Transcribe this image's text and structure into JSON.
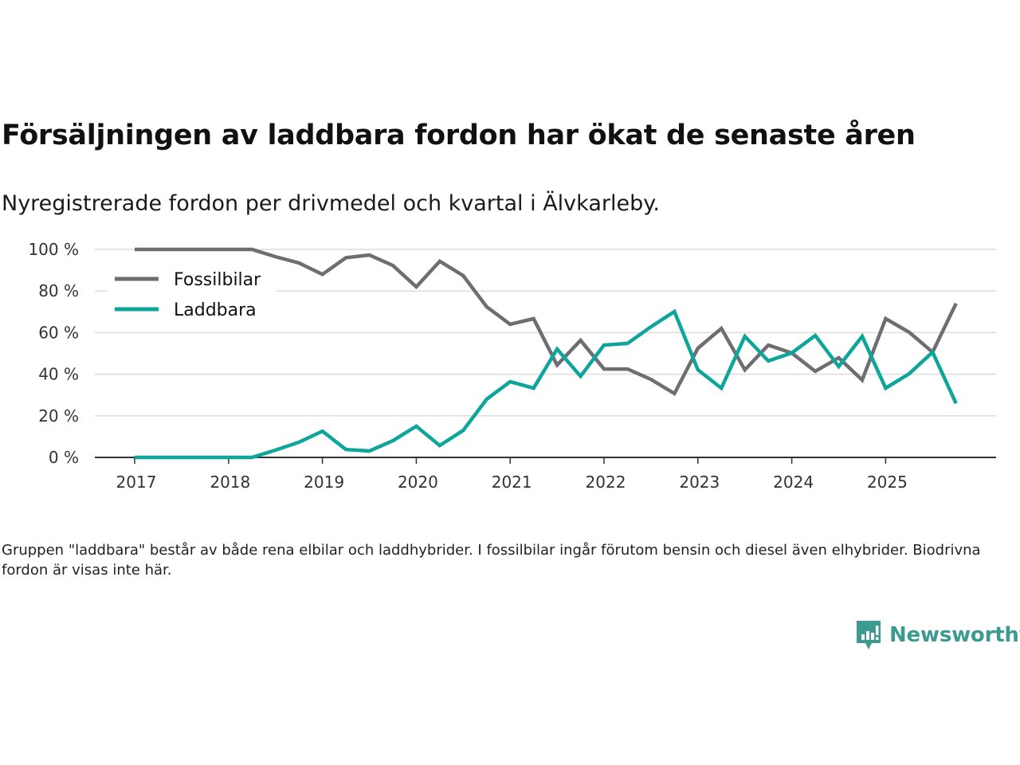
{
  "header": {
    "title": "Försäljningen av laddbara fordon har ökat de senaste åren",
    "subtitle": "Nyregistrerade fordon per drivmedel och kvartal i Älvkarleby."
  },
  "footnote": "Gruppen \"laddbara\" består av både rena elbilar och laddhybrider. I fossilbilar ingår förutom bensin och diesel även elhybrider. Biodrivna fordon är visas inte här.",
  "brand": {
    "name": "Newsworthy",
    "color": "#3d9a8f"
  },
  "chart_data": {
    "type": "line",
    "title": "Försäljningen av laddbara fordon har ökat de senaste åren",
    "subtitle": "Nyregistrerade fordon per drivmedel och kvartal i Älvkarleby.",
    "xlabel": "",
    "ylabel": "",
    "x_start": 2017,
    "x_step": 0.25,
    "xlim": [
      2016.7,
      2026.2
    ],
    "xticks": [
      2017,
      2018,
      2019,
      2020,
      2021,
      2022,
      2023,
      2024,
      2025
    ],
    "xtick_labels": [
      "2017",
      "2018",
      "2019",
      "2020",
      "2021",
      "2022",
      "2023",
      "2024",
      "2025"
    ],
    "ylim": [
      0,
      100
    ],
    "yticks": [
      0,
      20,
      40,
      60,
      80,
      100
    ],
    "ytick_labels": [
      "0 %",
      "20 %",
      "40 %",
      "60 %",
      "80 %",
      "100 %"
    ],
    "grid": true,
    "legend_position": "top-left",
    "series": [
      {
        "name": "Fossilbilar",
        "color": "#6e6e72",
        "values": [
          100,
          100,
          100,
          100,
          100,
          100,
          96.5,
          93.5,
          88,
          96,
          97.3,
          92.3,
          82,
          94.3,
          87.4,
          72.4,
          64,
          66.7,
          44.4,
          56.3,
          42.5,
          42.5,
          37.5,
          30.7,
          52.5,
          62,
          42.1,
          54,
          50.2,
          41.4,
          47.9,
          37.2,
          66.7,
          60.2,
          50.6,
          74
        ]
      },
      {
        "name": "Laddbara",
        "color": "#0ea59a",
        "values": [
          0,
          0,
          0,
          0,
          0,
          0,
          3.5,
          7.3,
          12.6,
          3.8,
          3.1,
          8,
          15,
          5.7,
          13,
          28,
          36.4,
          33.3,
          52.1,
          39,
          54,
          54.8,
          62.8,
          70.1,
          42.1,
          33.3,
          58.2,
          46.4,
          50.2,
          58.6,
          43.7,
          58.2,
          33.3,
          40.2,
          50.6,
          26
        ]
      }
    ]
  }
}
